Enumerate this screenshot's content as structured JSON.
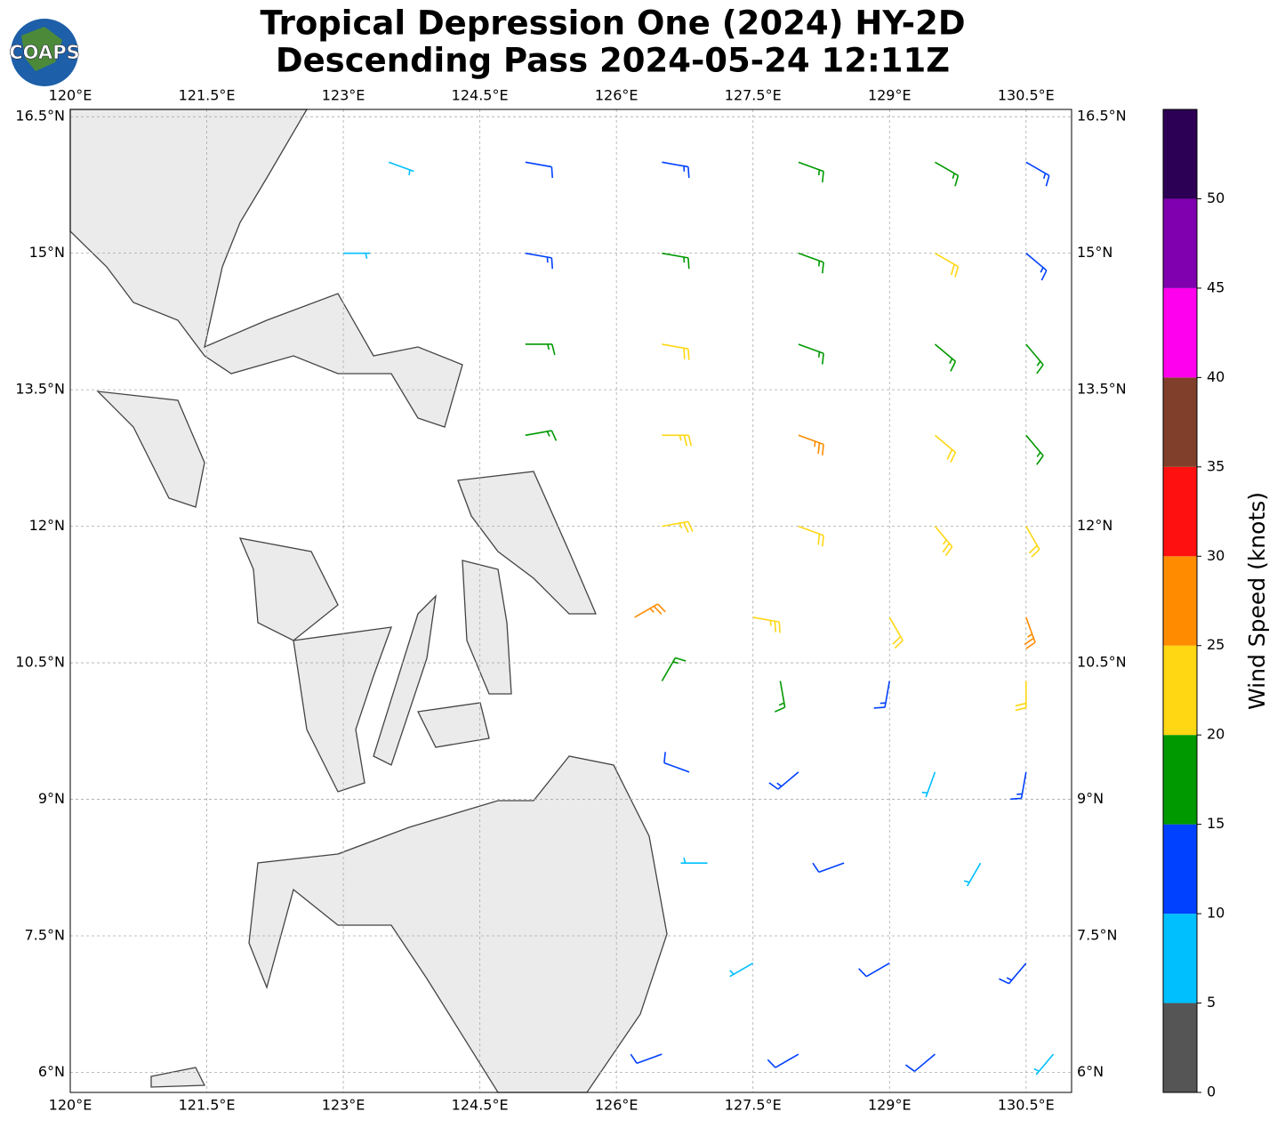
{
  "logo": {
    "text": "COAPS"
  },
  "chart_data": {
    "type": "map",
    "title": "Tropical Depression One (2024) HY-2D",
    "subtitle": "Descending Pass 2024-05-24 12:11Z",
    "xlim": [
      120,
      131
    ],
    "ylim": [
      5.78,
      16.58
    ],
    "grid": true,
    "xticks": [
      {
        "value": 120,
        "label": "120°E"
      },
      {
        "value": 121.5,
        "label": "121.5°E"
      },
      {
        "value": 123,
        "label": "123°E"
      },
      {
        "value": 124.5,
        "label": "124.5°E"
      },
      {
        "value": 126,
        "label": "126°E"
      },
      {
        "value": 127.5,
        "label": "127.5°E"
      },
      {
        "value": 129,
        "label": "129°E"
      },
      {
        "value": 130.5,
        "label": "130.5°E"
      }
    ],
    "yticks": [
      {
        "value": 6,
        "label": "6°N"
      },
      {
        "value": 7.5,
        "label": "7.5°N"
      },
      {
        "value": 9,
        "label": "9°N"
      },
      {
        "value": 10.5,
        "label": "10.5°N"
      },
      {
        "value": 12,
        "label": "12°N"
      },
      {
        "value": 13.5,
        "label": "13.5°N"
      },
      {
        "value": 15,
        "label": "15°N"
      },
      {
        "value": 16.5,
        "label": "16.5°N"
      }
    ],
    "barbs": {
      "lon": [
        123.5,
        125,
        126.5,
        128,
        129.5,
        130.5,
        123,
        125,
        126.5,
        128,
        129.5,
        130.5,
        125,
        126.5,
        128,
        129.5,
        130.5,
        125,
        126.5,
        128,
        129.5,
        130.5,
        126.5,
        128,
        129.5,
        130.5,
        126.2,
        127.5,
        129,
        130.5,
        126.5,
        127.8,
        129,
        130.5,
        126.8,
        128,
        129.5,
        130.5,
        127,
        128.5,
        130,
        127.5,
        129,
        130.5,
        126.5,
        128,
        129.5,
        130.8
      ],
      "lat": [
        16,
        16,
        16,
        16,
        16,
        16,
        15,
        15,
        15,
        15,
        15,
        15,
        14,
        14,
        14,
        14,
        14,
        13,
        13,
        13,
        13,
        13,
        12,
        12,
        12,
        12,
        11,
        11,
        11,
        11,
        10.3,
        10.3,
        10.3,
        10.3,
        9.3,
        9.3,
        9.3,
        9.3,
        8.3,
        8.3,
        8.3,
        7.2,
        7.2,
        7.2,
        6.2,
        6.2,
        6.2,
        6.2
      ],
      "speed": [
        8,
        10,
        13,
        17,
        17,
        14,
        8,
        13,
        17,
        19,
        22,
        13,
        17,
        22,
        19,
        17,
        15,
        15,
        24,
        27,
        22,
        19,
        24,
        22,
        23,
        22,
        27,
        23,
        21,
        26,
        15,
        18,
        14,
        21,
        12,
        14,
        9,
        13,
        8,
        12,
        8,
        9,
        11,
        13,
        12,
        10,
        11,
        9
      ],
      "direction": [
        110,
        100,
        100,
        110,
        120,
        120,
        90,
        100,
        100,
        110,
        120,
        130,
        90,
        100,
        110,
        130,
        140,
        80,
        90,
        110,
        130,
        140,
        80,
        110,
        140,
        150,
        60,
        100,
        150,
        160,
        30,
        170,
        190,
        180,
        290,
        230,
        200,
        190,
        270,
        250,
        210,
        240,
        240,
        220,
        250,
        240,
        230,
        220
      ]
    },
    "colorbar": {
      "label": "Wind Speed (knots)",
      "lim": [
        0,
        55
      ],
      "bounds": [
        0,
        5,
        10,
        15,
        20,
        25,
        30,
        35,
        40,
        45,
        50,
        55
      ],
      "colors": [
        "#555555",
        "#00bfff",
        "#0040ff",
        "#009900",
        "#ffd712",
        "#ff8c00",
        "#ff1010",
        "#7f3f2a",
        "#ff00ee",
        "#8000b0",
        "#2b0055"
      ],
      "ticks": [
        0,
        5,
        10,
        15,
        20,
        25,
        30,
        35,
        40,
        45,
        50
      ]
    }
  }
}
